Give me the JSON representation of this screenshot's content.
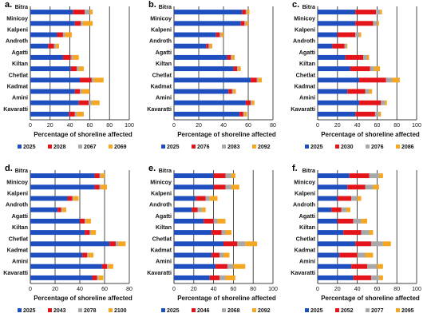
{
  "colors": {
    "s1": "#1f4fbf",
    "s2": "#e3151b",
    "s3": "#a8a8a8",
    "s4": "#f5a623"
  },
  "chart_data": [
    {
      "panel": "a.",
      "type": "bar",
      "xlabel": "Percentage of shoreline affected",
      "xlim": [
        0,
        100
      ],
      "xticks": [
        0,
        20,
        40,
        60,
        80,
        100
      ],
      "categories": [
        "Bitra",
        "Minicoy",
        "Kalpeni",
        "Androth",
        "Agatti",
        "Kiltan",
        "Chetlat",
        "Kadmat",
        "Amini",
        "Kavaratti"
      ],
      "series": [
        {
          "name": "2025",
          "values": [
            43,
            45,
            27,
            18,
            33,
            41,
            50,
            45,
            49,
            39
          ]
        },
        {
          "name": "2028",
          "values": [
            12,
            6,
            6,
            6,
            8,
            6,
            12,
            5,
            10,
            6
          ]
        },
        {
          "name": "2067",
          "values": [
            5,
            2,
            2,
            2,
            2,
            2,
            2,
            2,
            3,
            2
          ]
        },
        {
          "name": "2069",
          "values": [
            3,
            10,
            7,
            3,
            6,
            5,
            10,
            8,
            8,
            7
          ]
        }
      ]
    },
    {
      "panel": "b.",
      "type": "bar",
      "xlabel": "Percentage of shoreline affected",
      "xlim": [
        0,
        80
      ],
      "xticks": [
        0,
        20,
        40,
        60,
        80
      ],
      "categories": [
        "Bitra",
        "Minicoy",
        "Kalpeni",
        "Androth",
        "Agatti",
        "Kiltan",
        "Chetlat",
        "Kadmat",
        "Amini",
        "Kavaratti"
      ],
      "series": [
        {
          "name": "2025",
          "values": [
            55,
            54,
            34,
            26,
            43,
            48,
            62,
            44,
            58,
            53
          ]
        },
        {
          "name": "2076",
          "values": [
            3,
            3,
            3,
            2,
            3,
            3,
            5,
            3,
            4,
            3
          ]
        },
        {
          "name": "2083",
          "values": [
            1,
            1,
            1,
            1,
            1,
            1,
            1,
            1,
            1,
            1
          ]
        },
        {
          "name": "2092",
          "values": [
            2,
            2,
            2,
            2,
            2,
            2,
            3,
            2,
            2,
            2
          ]
        }
      ]
    },
    {
      "panel": "c.",
      "type": "bar",
      "xlabel": "Percentage of shoreline affected",
      "xlim": [
        0,
        100
      ],
      "xticks": [
        0,
        20,
        40,
        60,
        80,
        100
      ],
      "categories": [
        "Bitra",
        "Minicoy",
        "Kalpeni",
        "Androth",
        "Agatti",
        "Kiltan",
        "Chetlat",
        "Kadmat",
        "Amini",
        "Kavaratti"
      ],
      "series": [
        {
          "name": "2025",
          "values": [
            38,
            38,
            20,
            15,
            28,
            33,
            42,
            30,
            42,
            38
          ]
        },
        {
          "name": "2030",
          "values": [
            21,
            18,
            18,
            12,
            18,
            20,
            27,
            18,
            22,
            20
          ]
        },
        {
          "name": "2076",
          "values": [
            4,
            4,
            4,
            2,
            4,
            4,
            6,
            4,
            4,
            4
          ]
        },
        {
          "name": "2086",
          "values": [
            2,
            2,
            2,
            1,
            2,
            6,
            8,
            3,
            2,
            2
          ]
        }
      ]
    },
    {
      "panel": "d.",
      "type": "bar",
      "xlabel": "Percentage of shoreline affected",
      "xlim": [
        0,
        80
      ],
      "xticks": [
        0,
        20,
        40,
        60,
        80
      ],
      "categories": [
        "Bitra",
        "Minicoy",
        "Kalpeni",
        "Androth",
        "Agatti",
        "Kiltan",
        "Chetlat",
        "Kadmat",
        "Amini",
        "Kavaratti"
      ],
      "series": [
        {
          "name": "2025",
          "values": [
            52,
            52,
            30,
            22,
            40,
            44,
            64,
            42,
            58,
            50
          ]
        },
        {
          "name": "2043",
          "values": [
            4,
            4,
            4,
            3,
            4,
            4,
            5,
            4,
            4,
            4
          ]
        },
        {
          "name": "2078",
          "values": [
            1,
            1,
            1,
            1,
            1,
            1,
            2,
            1,
            1,
            1
          ]
        },
        {
          "name": "2100",
          "values": [
            3,
            5,
            4,
            3,
            4,
            4,
            6,
            4,
            4,
            4
          ]
        }
      ]
    },
    {
      "panel": "e.",
      "type": "bar",
      "xlabel": "Percentage of shoreline affected",
      "xlim": [
        0,
        100
      ],
      "xticks": [
        0,
        20,
        40,
        60,
        80,
        100
      ],
      "categories": [
        "Bitra",
        "Minicoy",
        "Kalpeni",
        "Androth",
        "Agatti",
        "Kiltan",
        "Chetlat",
        "Kadmat",
        "Amini",
        "Kavaratti"
      ],
      "series": [
        {
          "name": "2025",
          "values": [
            40,
            40,
            22,
            18,
            30,
            38,
            50,
            38,
            42,
            36
          ]
        },
        {
          "name": "2046",
          "values": [
            12,
            12,
            10,
            6,
            10,
            10,
            14,
            8,
            12,
            10
          ]
        },
        {
          "name": "2068",
          "values": [
            6,
            6,
            4,
            4,
            4,
            4,
            8,
            4,
            6,
            6
          ]
        },
        {
          "name": "2092",
          "values": [
            4,
            8,
            8,
            4,
            8,
            6,
            12,
            6,
            12,
            10
          ]
        }
      ]
    },
    {
      "panel": "f.",
      "type": "bar",
      "xlabel": "Percentage of shoreline affected",
      "xlim": [
        0,
        100
      ],
      "xticks": [
        0,
        20,
        40,
        60,
        80,
        100
      ],
      "categories": [
        "Bitra",
        "Minicoy",
        "Kalpeni",
        "Androth",
        "Agatti",
        "Kiltan",
        "Chetlat",
        "Kadmat",
        "Amini",
        "Kavaratti"
      ],
      "series": [
        {
          "name": "2025",
          "values": [
            32,
            30,
            20,
            14,
            20,
            26,
            38,
            22,
            34,
            36
          ]
        },
        {
          "name": "2052",
          "values": [
            20,
            18,
            14,
            10,
            16,
            18,
            16,
            18,
            16,
            18
          ]
        },
        {
          "name": "2077",
          "values": [
            10,
            8,
            6,
            5,
            8,
            8,
            12,
            8,
            10,
            8
          ]
        },
        {
          "name": "2095",
          "values": [
            4,
            6,
            4,
            4,
            6,
            4,
            8,
            8,
            6,
            4
          ]
        }
      ]
    }
  ]
}
